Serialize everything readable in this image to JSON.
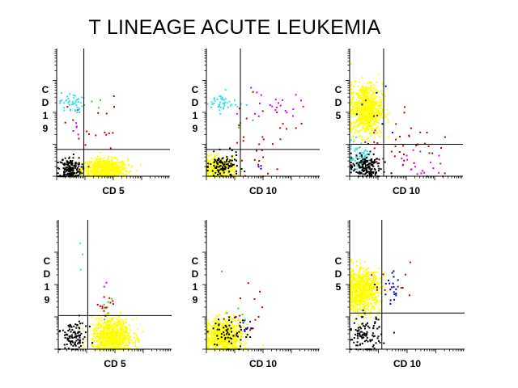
{
  "title": "T LINEAGE ACUTE LEUKEMIA",
  "colors": {
    "yellow": "#ffff00",
    "cyan": "#33e0e0",
    "black": "#000000",
    "red": "#c00000",
    "magenta": "#e000e0",
    "green": "#33cc33",
    "blue": "#0000c0"
  },
  "chart_data": [
    {
      "type": "scatter",
      "panel": "top-left",
      "xlabel": "CD 5",
      "ylabel": "CD19",
      "xlim": [
        0,
        1
      ],
      "ylim": [
        0,
        1
      ],
      "quadrant_gate": {
        "x": 0.24,
        "y": 0.21
      },
      "series": [
        {
          "color": "yellow",
          "cx": 0.42,
          "cy": 0.06,
          "sx": 0.1,
          "sy": 0.04,
          "n": 600
        },
        {
          "color": "black",
          "cx": 0.11,
          "cy": 0.06,
          "sx": 0.05,
          "sy": 0.05,
          "n": 180
        },
        {
          "color": "cyan",
          "cx": 0.12,
          "cy": 0.58,
          "sx": 0.05,
          "sy": 0.04,
          "n": 45
        },
        {
          "color": "red",
          "cx": 0.33,
          "cy": 0.37,
          "sx": 0.12,
          "sy": 0.13,
          "n": 18
        },
        {
          "color": "magenta",
          "cx": 0.15,
          "cy": 0.42,
          "sx": 0.06,
          "sy": 0.1,
          "n": 6
        },
        {
          "color": "green",
          "cx": 0.32,
          "cy": 0.55,
          "sx": 0.12,
          "sy": 0.05,
          "n": 4
        }
      ]
    },
    {
      "type": "scatter",
      "panel": "top-middle",
      "xlabel": "CD 10",
      "ylabel": "CD19",
      "xlim": [
        0,
        1
      ],
      "ylim": [
        0,
        1
      ],
      "quadrant_gate": {
        "x": 0.3,
        "y": 0.21
      },
      "series": [
        {
          "color": "yellow",
          "cx": 0.11,
          "cy": 0.06,
          "sx": 0.07,
          "sy": 0.05,
          "n": 350
        },
        {
          "color": "black",
          "cx": 0.14,
          "cy": 0.08,
          "sx": 0.07,
          "sy": 0.05,
          "n": 110
        },
        {
          "color": "cyan",
          "cx": 0.14,
          "cy": 0.58,
          "sx": 0.07,
          "sy": 0.04,
          "n": 45
        },
        {
          "color": "magenta",
          "cx": 0.58,
          "cy": 0.55,
          "sx": 0.13,
          "sy": 0.06,
          "n": 22
        },
        {
          "color": "red",
          "cx": 0.48,
          "cy": 0.3,
          "sx": 0.16,
          "sy": 0.14,
          "n": 30
        },
        {
          "color": "blue",
          "cx": 0.46,
          "cy": 0.06,
          "sx": 0.04,
          "sy": 0.02,
          "n": 3
        },
        {
          "color": "green",
          "cx": 0.36,
          "cy": 0.46,
          "sx": 0.06,
          "sy": 0.05,
          "n": 3
        }
      ]
    },
    {
      "type": "scatter",
      "panel": "top-right",
      "xlabel": "CD 10",
      "ylabel": "CD5",
      "xlim": [
        0,
        1
      ],
      "ylim": [
        0,
        1
      ],
      "quadrant_gate": {
        "x": 0.3,
        "y": 0.25
      },
      "series": [
        {
          "color": "yellow",
          "cx": 0.14,
          "cy": 0.53,
          "sx": 0.07,
          "sy": 0.1,
          "n": 700
        },
        {
          "color": "cyan",
          "cx": 0.08,
          "cy": 0.15,
          "sx": 0.05,
          "sy": 0.07,
          "n": 70
        },
        {
          "color": "black",
          "cx": 0.13,
          "cy": 0.08,
          "sx": 0.07,
          "sy": 0.05,
          "n": 160
        },
        {
          "color": "red",
          "cx": 0.45,
          "cy": 0.3,
          "sx": 0.16,
          "sy": 0.16,
          "n": 40
        },
        {
          "color": "magenta",
          "cx": 0.58,
          "cy": 0.08,
          "sx": 0.14,
          "sy": 0.06,
          "n": 20
        },
        {
          "color": "blue",
          "cx": 0.32,
          "cy": 0.55,
          "sx": 0.12,
          "sy": 0.12,
          "n": 6
        }
      ]
    },
    {
      "type": "scatter",
      "panel": "bottom-left",
      "xlabel": "CD 5",
      "ylabel": "CD19",
      "xlim": [
        0,
        1
      ],
      "ylim": [
        0,
        1
      ],
      "quadrant_gate": {
        "x": 0.26,
        "y": 0.26
      },
      "series": [
        {
          "color": "yellow",
          "cx": 0.47,
          "cy": 0.1,
          "sx": 0.09,
          "sy": 0.07,
          "n": 700
        },
        {
          "color": "black",
          "cx": 0.13,
          "cy": 0.1,
          "sx": 0.06,
          "sy": 0.06,
          "n": 100
        },
        {
          "color": "red",
          "cx": 0.41,
          "cy": 0.32,
          "sx": 0.03,
          "sy": 0.07,
          "n": 14
        },
        {
          "color": "green",
          "cx": 0.42,
          "cy": 0.37,
          "sx": 0.04,
          "sy": 0.08,
          "n": 6
        },
        {
          "color": "cyan",
          "cx": 0.2,
          "cy": 0.62,
          "sx": 0.02,
          "sy": 0.12,
          "n": 3
        },
        {
          "color": "magenta",
          "cx": 0.4,
          "cy": 0.5,
          "sx": 0.02,
          "sy": 0.03,
          "n": 2
        }
      ]
    },
    {
      "type": "scatter",
      "panel": "bottom-middle",
      "xlabel": "CD 10",
      "ylabel": "CD19",
      "xlim": [
        0,
        1
      ],
      "ylim": [
        0,
        1
      ],
      "quadrant_gate": null,
      "series": [
        {
          "color": "yellow",
          "cx": 0.15,
          "cy": 0.1,
          "sx": 0.08,
          "sy": 0.07,
          "n": 650
        },
        {
          "color": "black",
          "cx": 0.19,
          "cy": 0.12,
          "sx": 0.08,
          "sy": 0.07,
          "n": 60
        },
        {
          "color": "red",
          "cx": 0.38,
          "cy": 0.35,
          "sx": 0.1,
          "sy": 0.13,
          "n": 14
        },
        {
          "color": "blue",
          "cx": 0.36,
          "cy": 0.16,
          "sx": 0.04,
          "sy": 0.05,
          "n": 10
        },
        {
          "color": "green",
          "cx": 0.24,
          "cy": 0.45,
          "sx": 0.06,
          "sy": 0.1,
          "n": 5
        }
      ]
    },
    {
      "type": "scatter",
      "panel": "bottom-right",
      "xlabel": "CD 10",
      "ylabel": "CD5",
      "xlim": [
        0,
        1
      ],
      "ylim": [
        0,
        1
      ],
      "quadrant_gate": {
        "x": 0.28,
        "y": 0.28
      },
      "series": [
        {
          "color": "yellow",
          "cx": 0.1,
          "cy": 0.46,
          "sx": 0.08,
          "sy": 0.08,
          "n": 700
        },
        {
          "color": "black",
          "cx": 0.13,
          "cy": 0.11,
          "sx": 0.07,
          "sy": 0.07,
          "n": 110
        },
        {
          "color": "blue",
          "cx": 0.36,
          "cy": 0.46,
          "sx": 0.05,
          "sy": 0.06,
          "n": 22
        },
        {
          "color": "red",
          "cx": 0.4,
          "cy": 0.48,
          "sx": 0.1,
          "sy": 0.06,
          "n": 10
        }
      ]
    }
  ]
}
